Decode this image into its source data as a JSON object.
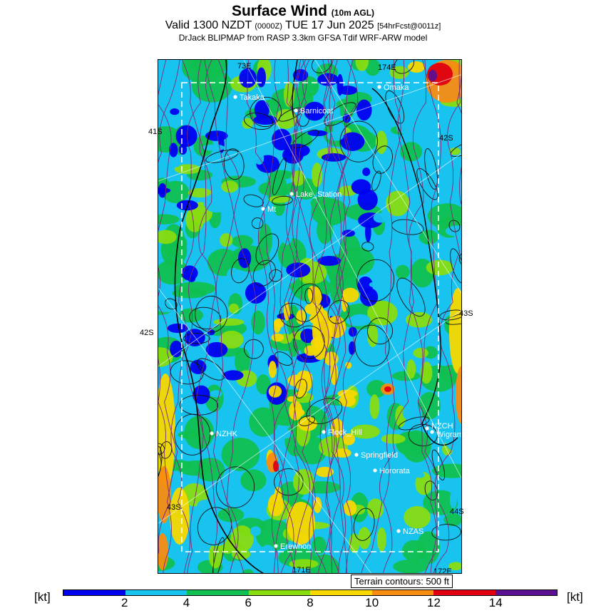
{
  "header": {
    "title": "Surface Wind",
    "title_sub": "(10m AGL)",
    "valid_main": "Valid 1300 NZDT",
    "valid_z": "(0000Z)",
    "valid_date": "TUE 17 Jun 2025",
    "forecast": "[54hrFcst@0011z]",
    "model": "DrJack BLIPMAP from RASP 3.3km GFSA Tdif WRF-ARW model"
  },
  "map": {
    "grid_labels": {
      "lon_173e": "73E",
      "lon_174e": "174E",
      "lon_171e": "171E",
      "lon_172e": "172E",
      "lat_41s_left": "41S",
      "lat_42s_right": "42S",
      "lat_42s_left": "42S",
      "lat_43s_right": "43S",
      "lat_43s_left": "43S",
      "lat_44s_right": "44S"
    },
    "places": [
      {
        "name": "Takaka"
      },
      {
        "name": "Omaka"
      },
      {
        "name": "Barnicoat"
      },
      {
        "name": "Lake_Station"
      },
      {
        "name": "Mt"
      },
      {
        "name": "NZHK"
      },
      {
        "name": "Flock_Hill"
      },
      {
        "name": "NZCH"
      },
      {
        "name": "Wigram"
      },
      {
        "name": "Springfield"
      },
      {
        "name": "Hororata"
      },
      {
        "name": "NZAS"
      },
      {
        "name": "Erewhon"
      }
    ],
    "terrain_note": "Terrain contours: 500 ft"
  },
  "legend": {
    "unit_left": "[kt]",
    "unit_right": "[kt]",
    "ticks": [
      "2",
      "4",
      "6",
      "8",
      "10",
      "12",
      "14"
    ],
    "colors": [
      "#0000f0",
      "#18c3f0",
      "#10c050",
      "#88dc10",
      "#f8d800",
      "#f88c10",
      "#e00010",
      "#5a1090"
    ]
  }
}
